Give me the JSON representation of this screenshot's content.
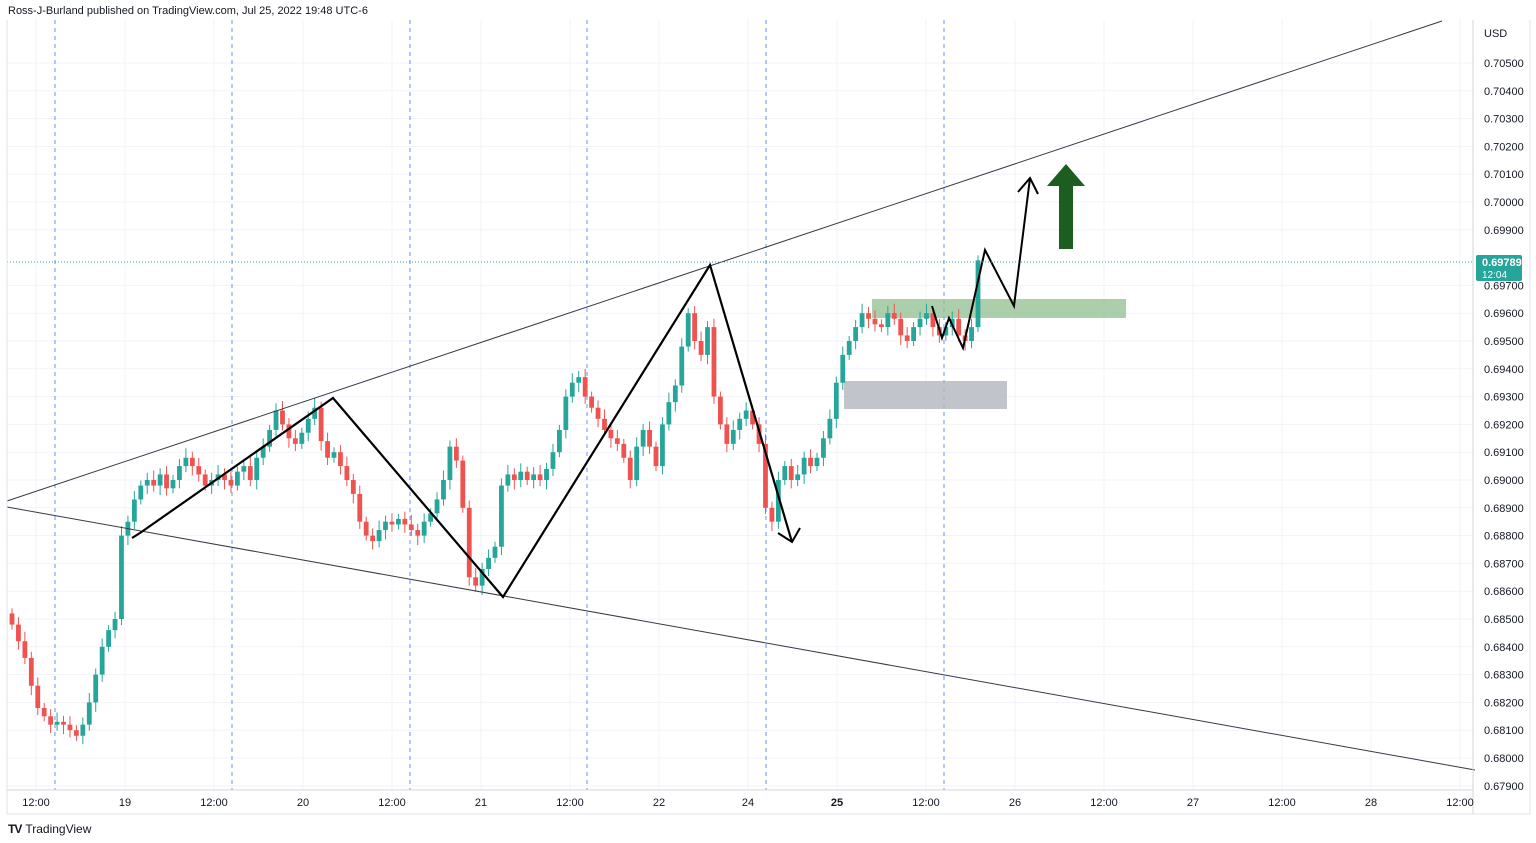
{
  "header": {
    "text": "Ross-J-Burland published on TradingView.com, Jul 25, 2022 19:48 UTC-6"
  },
  "brand": {
    "logo": "TV",
    "name": "TradingView"
  },
  "colors": {
    "up": "#26a69a",
    "down": "#ef5350",
    "grid": "#f0f3fa",
    "vline": "#2962ff",
    "price_line": "#26a69a",
    "green_zone": "#8fbf8f",
    "gray_zone": "#b2b5be",
    "arrow": "#1b5e20"
  },
  "chart_data": {
    "type": "candlestick",
    "currency_label": "USD",
    "y_ticks": [
      "0.70500",
      "0.70400",
      "0.70300",
      "0.70200",
      "0.70100",
      "0.70000",
      "0.69900",
      "0.69700",
      "0.69600",
      "0.69500",
      "0.69400",
      "0.69300",
      "0.69200",
      "0.69100",
      "0.69000",
      "0.68900",
      "0.68800",
      "0.68700",
      "0.68600",
      "0.68500",
      "0.68400",
      "0.68300",
      "0.68200",
      "0.68100",
      "0.68000",
      "0.67900"
    ],
    "x_ticks": [
      {
        "label": "12:00",
        "bold": false
      },
      {
        "label": "19",
        "bold": false
      },
      {
        "label": "12:00",
        "bold": false
      },
      {
        "label": "20",
        "bold": false
      },
      {
        "label": "12:00",
        "bold": false
      },
      {
        "label": "21",
        "bold": false
      },
      {
        "label": "12:00",
        "bold": false
      },
      {
        "label": "22",
        "bold": false
      },
      {
        "label": "24",
        "bold": false
      },
      {
        "label": "25",
        "bold": true
      },
      {
        "label": "12:00",
        "bold": false
      },
      {
        "label": "26",
        "bold": false
      },
      {
        "label": "12:00",
        "bold": false
      },
      {
        "label": "27",
        "bold": false
      },
      {
        "label": "12:00",
        "bold": false
      },
      {
        "label": "28",
        "bold": false
      },
      {
        "label": "12:00",
        "bold": false
      }
    ],
    "last_price": {
      "value": "0.69789",
      "countdown": "12:04"
    },
    "closes": [
      0.6848,
      0.6842,
      0.6836,
      0.6826,
      0.6818,
      0.6815,
      0.6812,
      0.6813,
      0.6812,
      0.681,
      0.6808,
      0.6812,
      0.682,
      0.683,
      0.684,
      0.6846,
      0.685,
      0.688,
      0.6885,
      0.6893,
      0.6898,
      0.69,
      0.6898,
      0.6902,
      0.6897,
      0.69,
      0.6905,
      0.6908,
      0.6905,
      0.6902,
      0.6898,
      0.69,
      0.6902,
      0.69,
      0.6898,
      0.6903,
      0.6905,
      0.69,
      0.6908,
      0.6912,
      0.6918,
      0.6925,
      0.692,
      0.6915,
      0.6913,
      0.6917,
      0.6922,
      0.6926,
      0.6914,
      0.6908,
      0.691,
      0.6905,
      0.69,
      0.6895,
      0.6885,
      0.688,
      0.6878,
      0.6882,
      0.6885,
      0.6884,
      0.6886,
      0.6884,
      0.6882,
      0.688,
      0.6885,
      0.6888,
      0.6893,
      0.69,
      0.6912,
      0.6907,
      0.689,
      0.6865,
      0.6862,
      0.6868,
      0.6872,
      0.6876,
      0.6898,
      0.6902,
      0.69,
      0.6903,
      0.69,
      0.6902,
      0.69,
      0.6904,
      0.691,
      0.6918,
      0.693,
      0.6935,
      0.6937,
      0.693,
      0.6926,
      0.6922,
      0.6918,
      0.6915,
      0.6913,
      0.6908,
      0.69,
      0.6912,
      0.6918,
      0.6912,
      0.6905,
      0.692,
      0.6928,
      0.6934,
      0.6948,
      0.696,
      0.695,
      0.6945,
      0.6955,
      0.693,
      0.692,
      0.6913,
      0.6918,
      0.6922,
      0.6925,
      0.692,
      0.6913,
      0.689,
      0.6885,
      0.69,
      0.6905,
      0.69,
      0.6902,
      0.6908,
      0.6905,
      0.6908,
      0.6915,
      0.6922,
      0.6935,
      0.6945,
      0.695,
      0.6955,
      0.696,
      0.6958,
      0.6956,
      0.6955,
      0.696,
      0.6958,
      0.6952,
      0.695,
      0.6955,
      0.6958,
      0.696,
      0.6955,
      0.6952,
      0.6955,
      0.6958,
      0.6952,
      0.695,
      0.6955,
      0.6979
    ]
  }
}
